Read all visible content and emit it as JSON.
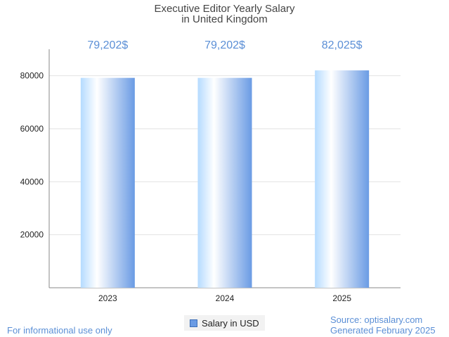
{
  "chart_data": {
    "type": "bar",
    "title": "Executive Editor Yearly Salary",
    "subtitle": "in United Kingdom",
    "categories": [
      "2023",
      "2024",
      "2025"
    ],
    "series": [
      {
        "name": "Salary in USD",
        "values": [
          79202,
          79202,
          82025
        ]
      }
    ],
    "data_labels": [
      "79,202$",
      "79,202$",
      "82,025$"
    ],
    "yticks": [
      20000,
      40000,
      60000,
      80000
    ],
    "ylim": [
      0,
      90000
    ],
    "grid": true,
    "legend_position": "bottom-center",
    "colors": {
      "bar_light": "#ffffff",
      "bar_mid": "#b5dbff",
      "bar_dark": "#6a9be4",
      "label": "#5b8fd6"
    }
  },
  "footer": {
    "note": "For informational use only",
    "source": "Source: optisalary.com",
    "generated": "Generated February 2025"
  }
}
